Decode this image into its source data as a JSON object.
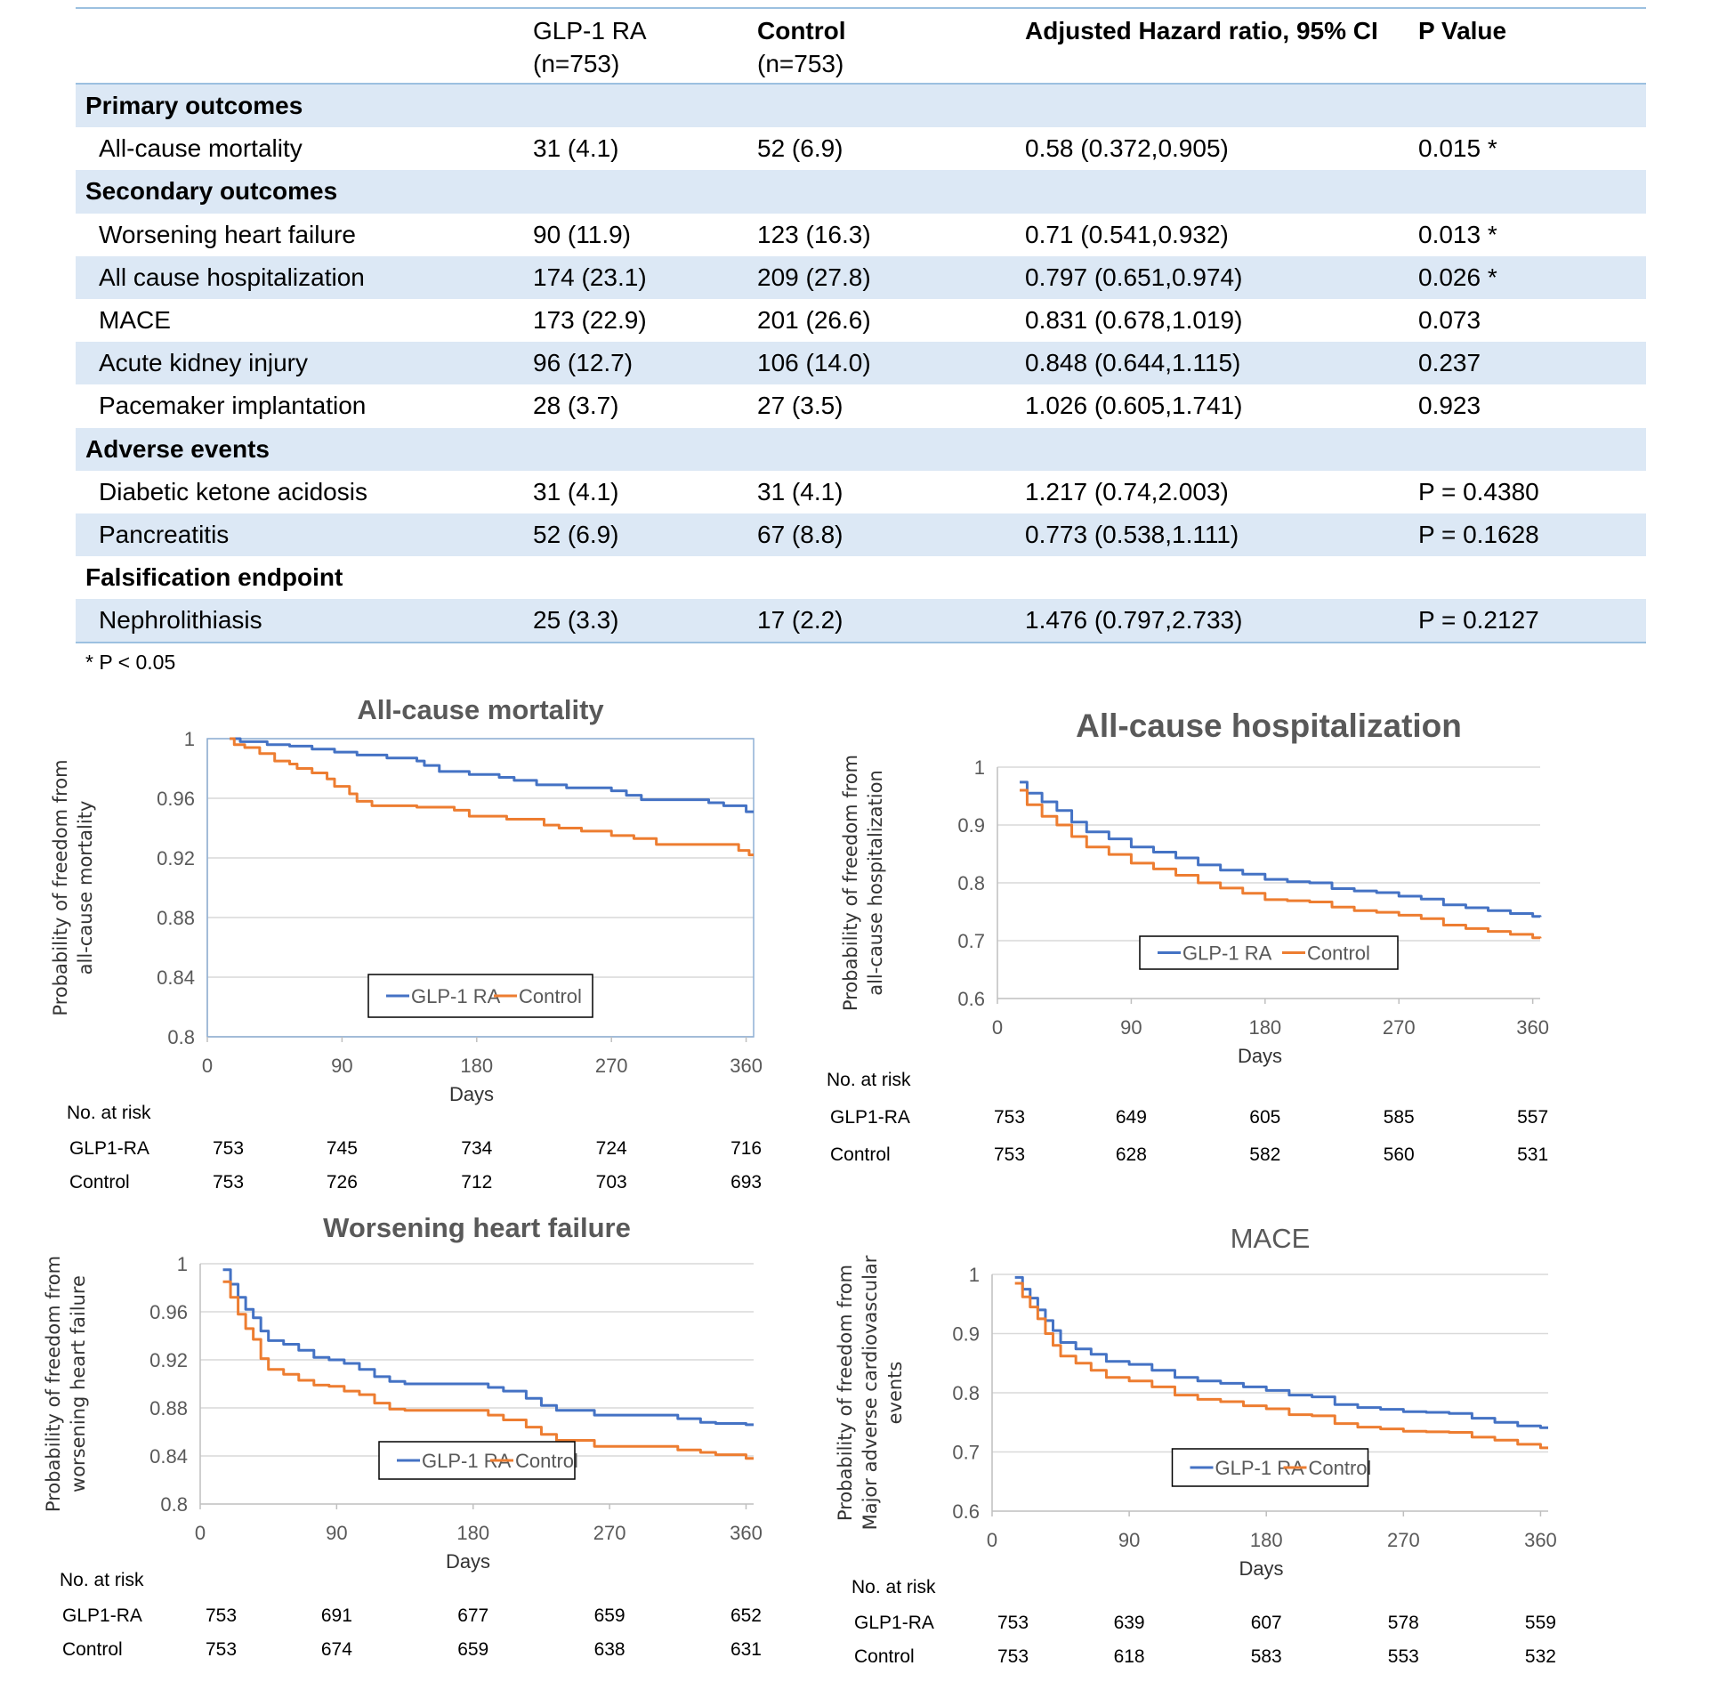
{
  "table": {
    "headers": [
      {
        "line1": "",
        "line2": ""
      },
      {
        "line1": "GLP-1 RA",
        "line2": "(n=753)"
      },
      {
        "line1": "Control",
        "line2": "(n=753)"
      },
      {
        "line1": "Adjusted Hazard ratio, 95% CI",
        "line2": ""
      },
      {
        "line1": "P Value",
        "line2": ""
      }
    ],
    "rows": [
      {
        "type": "section",
        "label": "Primary outcomes"
      },
      {
        "type": "data",
        "label": "All-cause mortality",
        "glp1": "31 (4.1)",
        "control": "52 (6.9)",
        "hr": "0.58 (0.372,0.905)",
        "p": "0.015 *"
      },
      {
        "type": "section",
        "label": "Secondary outcomes"
      },
      {
        "type": "data",
        "label": "Worsening heart failure",
        "glp1": "90 (11.9)",
        "control": "123 (16.3)",
        "hr": "0.71 (0.541,0.932)",
        "p": "0.013 *"
      },
      {
        "type": "data",
        "label": "All cause hospitalization",
        "glp1": "174 (23.1)",
        "control": "209 (27.8)",
        "hr": "0.797 (0.651,0.974)",
        "p": "0.026 *"
      },
      {
        "type": "data",
        "label": "MACE",
        "glp1": "173 (22.9)",
        "control": "201 (26.6)",
        "hr": "0.831 (0.678,1.019)",
        "p": "0.073"
      },
      {
        "type": "data",
        "label": "Acute kidney injury",
        "glp1": "96 (12.7)",
        "control": "106 (14.0)",
        "hr": "0.848 (0.644,1.115)",
        "p": "0.237"
      },
      {
        "type": "data",
        "label": "Pacemaker implantation",
        "glp1": "28 (3.7)",
        "control": "27 (3.5)",
        "hr": "1.026 (0.605,1.741)",
        "p": "0.923"
      },
      {
        "type": "section",
        "label": "Adverse events"
      },
      {
        "type": "data",
        "label": "Diabetic ketone acidosis",
        "glp1": "31 (4.1)",
        "control": "31 (4.1)",
        "hr": "1.217 (0.74,2.003)",
        "p": "P = 0.4380"
      },
      {
        "type": "data",
        "label": "Pancreatitis",
        "glp1": "52 (6.9)",
        "control": "67 (8.8)",
        "hr": "0.773 (0.538,1.111)",
        "p": "P = 0.1628"
      },
      {
        "type": "section",
        "label": "Falsification endpoint"
      },
      {
        "type": "data",
        "label": "Nephrolithiasis",
        "glp1": "25 (3.3)",
        "control": "17 (2.2)",
        "hr": "1.476 (0.797,2.733)",
        "p": "P = 0.2127"
      }
    ],
    "footnote": "* P < 0.05"
  },
  "colors": {
    "glp1": "#4472c4",
    "control": "#ed7d31",
    "shade": "#dce8f5",
    "rule": "#9cc0e0",
    "grid": "#d9d9d9",
    "axis_text": "#595959"
  },
  "chart_data": [
    {
      "id": "mortality",
      "type": "line",
      "title": "All-cause mortality",
      "xlabel": "Days",
      "ylabel": [
        "Probability of freedom from",
        "all-cause mortality"
      ],
      "xlim": [
        0,
        365
      ],
      "ylim": [
        0.8,
        1
      ],
      "xticks": [
        0,
        90,
        180,
        270,
        360
      ],
      "yticks": [
        0.8,
        0.84,
        0.88,
        0.92,
        0.96,
        1
      ],
      "ytick_labels": [
        "0.8",
        "0.84",
        "0.88",
        "0.92",
        "0.96",
        "1"
      ],
      "grid": true,
      "legend": "bottom-center",
      "series": [
        {
          "name": "GLP-1 RA",
          "x": [
            15,
            22,
            40,
            55,
            70,
            85,
            100,
            120,
            140,
            145,
            155,
            175,
            195,
            205,
            220,
            240,
            270,
            280,
            290,
            320,
            335,
            345,
            360,
            365
          ],
          "y": [
            1,
            0.998,
            0.996,
            0.995,
            0.993,
            0.991,
            0.989,
            0.987,
            0.985,
            0.982,
            0.978,
            0.976,
            0.974,
            0.972,
            0.969,
            0.967,
            0.965,
            0.962,
            0.959,
            0.959,
            0.957,
            0.955,
            0.951,
            0.951
          ]
        },
        {
          "name": "Control",
          "x": [
            15,
            18,
            25,
            35,
            45,
            55,
            60,
            70,
            80,
            85,
            95,
            100,
            110,
            140,
            165,
            175,
            200,
            225,
            235,
            250,
            270,
            285,
            300,
            320,
            345,
            355,
            362,
            365
          ],
          "y": [
            1,
            0.996,
            0.994,
            0.99,
            0.985,
            0.983,
            0.98,
            0.977,
            0.973,
            0.968,
            0.963,
            0.958,
            0.955,
            0.954,
            0.952,
            0.948,
            0.946,
            0.942,
            0.94,
            0.938,
            0.935,
            0.933,
            0.929,
            0.929,
            0.929,
            0.925,
            0.922,
            0.922
          ]
        }
      ],
      "risk_table": {
        "label": "No. at risk",
        "rows": [
          {
            "name": "GLP1-RA",
            "values": [
              "753",
              "745",
              "734",
              "724",
              "716"
            ]
          },
          {
            "name": "Control",
            "values": [
              "753",
              "726",
              "712",
              "703",
              "693"
            ]
          }
        ]
      }
    },
    {
      "id": "hospitalization",
      "type": "line",
      "title": "All-cause hospitalization",
      "xlabel": "Days",
      "ylabel": [
        "Probability of freedom from",
        "all-cause hospitalization"
      ],
      "xlim": [
        0,
        365
      ],
      "ylim": [
        0.6,
        1
      ],
      "xticks": [
        0,
        90,
        180,
        270,
        360
      ],
      "yticks": [
        0.6,
        0.7,
        0.8,
        0.9,
        1
      ],
      "ytick_labels": [
        "0.6",
        "0.7",
        "0.8",
        "0.9",
        "1"
      ],
      "grid": true,
      "legend": "bottom-center",
      "series": [
        {
          "name": "GLP-1 RA",
          "x": [
            15,
            20,
            30,
            40,
            50,
            60,
            75,
            90,
            105,
            120,
            135,
            150,
            165,
            180,
            195,
            210,
            225,
            240,
            255,
            270,
            285,
            300,
            315,
            330,
            345,
            360,
            365
          ],
          "y": [
            0.974,
            0.955,
            0.94,
            0.925,
            0.905,
            0.888,
            0.876,
            0.862,
            0.853,
            0.843,
            0.831,
            0.822,
            0.815,
            0.806,
            0.802,
            0.8,
            0.79,
            0.786,
            0.783,
            0.777,
            0.772,
            0.762,
            0.757,
            0.752,
            0.747,
            0.742,
            0.741
          ]
        },
        {
          "name": "Control",
          "x": [
            15,
            20,
            30,
            40,
            50,
            60,
            75,
            90,
            105,
            120,
            135,
            150,
            165,
            180,
            195,
            210,
            225,
            240,
            255,
            270,
            285,
            300,
            315,
            330,
            345,
            360,
            365
          ],
          "y": [
            0.96,
            0.935,
            0.915,
            0.9,
            0.88,
            0.862,
            0.849,
            0.834,
            0.824,
            0.813,
            0.8,
            0.791,
            0.782,
            0.771,
            0.769,
            0.767,
            0.758,
            0.752,
            0.749,
            0.744,
            0.738,
            0.727,
            0.721,
            0.716,
            0.711,
            0.705,
            0.704
          ]
        }
      ],
      "risk_table": {
        "label": "No. at risk",
        "rows": [
          {
            "name": "GLP1-RA",
            "values": [
              "753",
              "649",
              "605",
              "585",
              "557"
            ]
          },
          {
            "name": "Control",
            "values": [
              "753",
              "628",
              "582",
              "560",
              "531"
            ]
          }
        ]
      }
    },
    {
      "id": "heart-failure",
      "type": "line",
      "title": "Worsening heart failure",
      "xlabel": "Days",
      "ylabel": [
        "Probability of freedom from",
        "worsening heart failure"
      ],
      "xlim": [
        0,
        365
      ],
      "ylim": [
        0.8,
        1
      ],
      "xticks": [
        0,
        90,
        180,
        270,
        360
      ],
      "yticks": [
        0.8,
        0.84,
        0.88,
        0.92,
        0.96,
        1
      ],
      "ytick_labels": [
        "0.8",
        "0.84",
        "0.88",
        "0.92",
        "0.96",
        "1"
      ],
      "grid": true,
      "legend": "bottom-center",
      "series": [
        {
          "name": "GLP-1 RA",
          "x": [
            15,
            20,
            25,
            30,
            35,
            40,
            45,
            55,
            65,
            75,
            85,
            95,
            105,
            115,
            125,
            135,
            150,
            165,
            180,
            190,
            200,
            215,
            225,
            235,
            245,
            260,
            275,
            300,
            315,
            330,
            340,
            360,
            365
          ],
          "y": [
            0.995,
            0.983,
            0.972,
            0.962,
            0.955,
            0.944,
            0.936,
            0.933,
            0.928,
            0.922,
            0.92,
            0.917,
            0.912,
            0.906,
            0.902,
            0.9,
            0.9,
            0.9,
            0.9,
            0.897,
            0.894,
            0.888,
            0.882,
            0.878,
            0.878,
            0.874,
            0.874,
            0.874,
            0.871,
            0.868,
            0.867,
            0.866,
            0.866
          ]
        },
        {
          "name": "Control",
          "x": [
            15,
            20,
            25,
            30,
            35,
            40,
            45,
            55,
            65,
            75,
            85,
            95,
            105,
            115,
            125,
            135,
            150,
            165,
            180,
            190,
            200,
            215,
            225,
            235,
            245,
            260,
            275,
            300,
            315,
            330,
            340,
            360,
            365
          ],
          "y": [
            0.985,
            0.972,
            0.958,
            0.946,
            0.937,
            0.921,
            0.912,
            0.908,
            0.903,
            0.899,
            0.898,
            0.894,
            0.891,
            0.884,
            0.879,
            0.878,
            0.878,
            0.878,
            0.878,
            0.874,
            0.87,
            0.864,
            0.858,
            0.853,
            0.853,
            0.848,
            0.848,
            0.848,
            0.845,
            0.843,
            0.841,
            0.838,
            0.838
          ]
        }
      ],
      "risk_table": {
        "label": "No. at risk",
        "rows": [
          {
            "name": "GLP1-RA",
            "values": [
              "753",
              "691",
              "677",
              "659",
              "652"
            ]
          },
          {
            "name": "Control",
            "values": [
              "753",
              "674",
              "659",
              "638",
              "631"
            ]
          }
        ]
      }
    },
    {
      "id": "mace",
      "type": "line",
      "title": "MACE",
      "xlabel": "Days",
      "ylabel": [
        "Probability of freedom from",
        "Major adverse cardiovascular",
        "events"
      ],
      "xlim": [
        0,
        365
      ],
      "ylim": [
        0.6,
        1
      ],
      "xticks": [
        0,
        90,
        180,
        270,
        360
      ],
      "yticks": [
        0.6,
        0.7,
        0.8,
        0.9,
        1
      ],
      "ytick_labels": [
        "0.6",
        "0.7",
        "0.8",
        "0.9",
        "1"
      ],
      "grid": true,
      "legend": "bottom-center",
      "series": [
        {
          "name": "GLP-1 RA",
          "x": [
            15,
            20,
            25,
            30,
            35,
            40,
            45,
            55,
            65,
            75,
            90,
            105,
            120,
            135,
            150,
            165,
            180,
            195,
            210,
            225,
            240,
            255,
            270,
            285,
            300,
            315,
            330,
            345,
            360,
            365
          ],
          "y": [
            0.995,
            0.975,
            0.96,
            0.94,
            0.922,
            0.905,
            0.885,
            0.874,
            0.865,
            0.853,
            0.848,
            0.838,
            0.826,
            0.82,
            0.816,
            0.81,
            0.804,
            0.796,
            0.793,
            0.78,
            0.775,
            0.772,
            0.768,
            0.767,
            0.765,
            0.757,
            0.75,
            0.744,
            0.741,
            0.741
          ]
        },
        {
          "name": "Control",
          "x": [
            15,
            20,
            25,
            30,
            35,
            40,
            45,
            55,
            65,
            75,
            90,
            105,
            120,
            135,
            150,
            165,
            180,
            195,
            210,
            225,
            240,
            255,
            270,
            285,
            300,
            315,
            330,
            345,
            360,
            365
          ],
          "y": [
            0.985,
            0.962,
            0.945,
            0.925,
            0.9,
            0.88,
            0.862,
            0.85,
            0.838,
            0.826,
            0.82,
            0.81,
            0.796,
            0.789,
            0.785,
            0.778,
            0.773,
            0.763,
            0.761,
            0.748,
            0.742,
            0.739,
            0.735,
            0.734,
            0.733,
            0.725,
            0.72,
            0.713,
            0.707,
            0.707
          ]
        }
      ],
      "risk_table": {
        "label": "No. at risk",
        "rows": [
          {
            "name": "GLP1-RA",
            "values": [
              "753",
              "639",
              "607",
              "578",
              "559"
            ]
          },
          {
            "name": "Control",
            "values": [
              "753",
              "618",
              "583",
              "553",
              "532"
            ]
          }
        ]
      }
    }
  ]
}
